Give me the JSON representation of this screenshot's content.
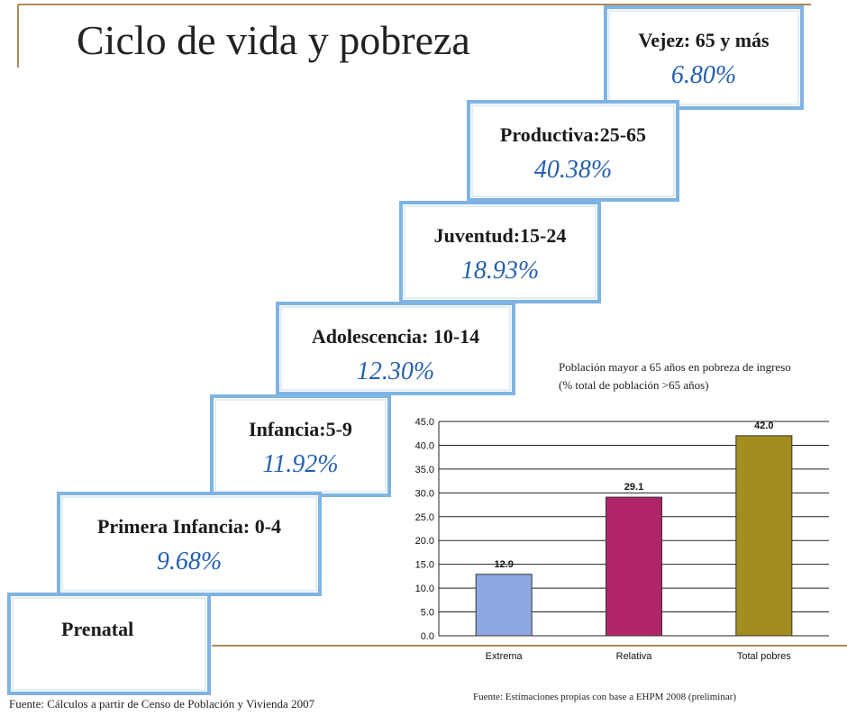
{
  "title": "Ciclo de vida y pobreza",
  "stages": [
    {
      "label": "Vejez: 65 y más",
      "share": "6.80%"
    },
    {
      "label": "Productiva:25-65",
      "share": "40.38%"
    },
    {
      "label": "Juventud:15-24",
      "share": "18.93%"
    },
    {
      "label": "Adolescencia: 10-14",
      "share": "12.30%"
    },
    {
      "label": "Infancia:5-9",
      "share": "11.92%"
    },
    {
      "label": "Primera Infancia: 0-4",
      "share": "9.68%"
    },
    {
      "label": "Prenatal"
    }
  ],
  "chart_data": {
    "type": "bar",
    "title": "Población mayor a 65 años en pobreza de ingreso",
    "subtitle": "(% total de población >65 años)",
    "categories": [
      "Extrema",
      "Relativa",
      "Total pobres"
    ],
    "values": [
      12.9,
      29.1,
      42.0
    ],
    "value_labels": [
      "12.9",
      "29.1",
      "42.0"
    ],
    "colors": [
      "#8ea9e2",
      "#b02469",
      "#a38d1e"
    ],
    "ylim": [
      0,
      45
    ],
    "yticks": [
      {
        "value": 0,
        "label": "0.0"
      },
      {
        "value": 5,
        "label": "5.0"
      },
      {
        "value": 10,
        "label": "10.0"
      },
      {
        "value": 15,
        "label": "15.0"
      },
      {
        "value": 20,
        "label": "20.0"
      },
      {
        "value": 25,
        "label": "25.0"
      },
      {
        "value": 30,
        "label": "30.0"
      },
      {
        "value": 35,
        "label": "35.0"
      },
      {
        "value": 40,
        "label": "40.0"
      },
      {
        "value": 45,
        "label": "45.0"
      }
    ],
    "grid": true
  },
  "sources": [
    "Fuente: Cálculos a partir de Censo de Población y Vivienda 2007",
    "Fuente: Estimaciones propias con base a EHPM 2008 (preliminar)"
  ]
}
